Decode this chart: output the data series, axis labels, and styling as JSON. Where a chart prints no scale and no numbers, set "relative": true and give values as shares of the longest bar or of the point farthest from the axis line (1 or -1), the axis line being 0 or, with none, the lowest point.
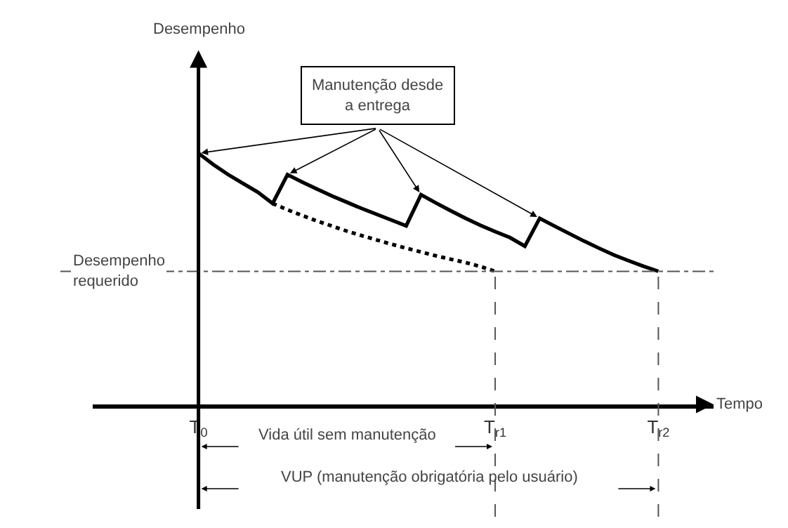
{
  "chart_data": {
    "type": "line",
    "relative": true,
    "xlabel": "Tempo",
    "categories": [
      "T$_{0}$",
      null,
      null,
      null,
      null,
      null,
      null,
      null,
      null,
      null,
      null,
      null,
      null,
      null,
      null,
      null,
      null,
      null,
      null,
      null,
      "T$_{r1}$",
      null,
      null,
      null,
      null,
      null,
      null,
      null,
      null,
      null,
      null,
      "T$_{r2}$"
    ],
    "series": [
      {
        "color": "#000000",
        "line_style": "solid",
        "values": [
          1,
          0.955,
          0.915,
          0.88,
          0.845,
          0.8,
          0.915,
          0.885,
          0.857,
          0.83,
          0.805,
          0.78,
          0.757,
          0.734,
          0.711,
          0.835,
          0.802,
          0.771,
          0.741,
          0.713,
          0.688,
          0.664,
          0.63,
          0.741,
          0.71,
          0.68,
          0.65,
          0.622,
          0.595,
          0.572,
          0.55,
          0.53
        ]
      },
      {
        "color": "#000000",
        "line_style": "dotted",
        "values": [
          null,
          null,
          null,
          null,
          null,
          0.8,
          0.775,
          0.752,
          0.73,
          0.71,
          0.69,
          0.672,
          0.655,
          0.638,
          0.622,
          0.607,
          0.592,
          0.578,
          0.565,
          0.549,
          0.53,
          null,
          null,
          null,
          null,
          null,
          null,
          null,
          null,
          null,
          null,
          null
        ]
      }
    ],
    "ref_lines": [
      {
        "axis": "y",
        "value": 0.53,
        "label": "Desempenho requerido",
        "line_style": "dashdot"
      },
      {
        "axis": "x",
        "value": "T$_{r1}$",
        "line_style": "dashed"
      },
      {
        "axis": "x",
        "value": "T$_{r2}$",
        "line_style": "dashed"
      }
    ],
    "annotations": [
      "Manutenção desde a entrega",
      "Vida útil sem manutenção",
      "VUP (manutenção obrigatória pelo usuário)",
      "Desempenho"
    ],
    "marker": "none",
    "grid": false
  }
}
